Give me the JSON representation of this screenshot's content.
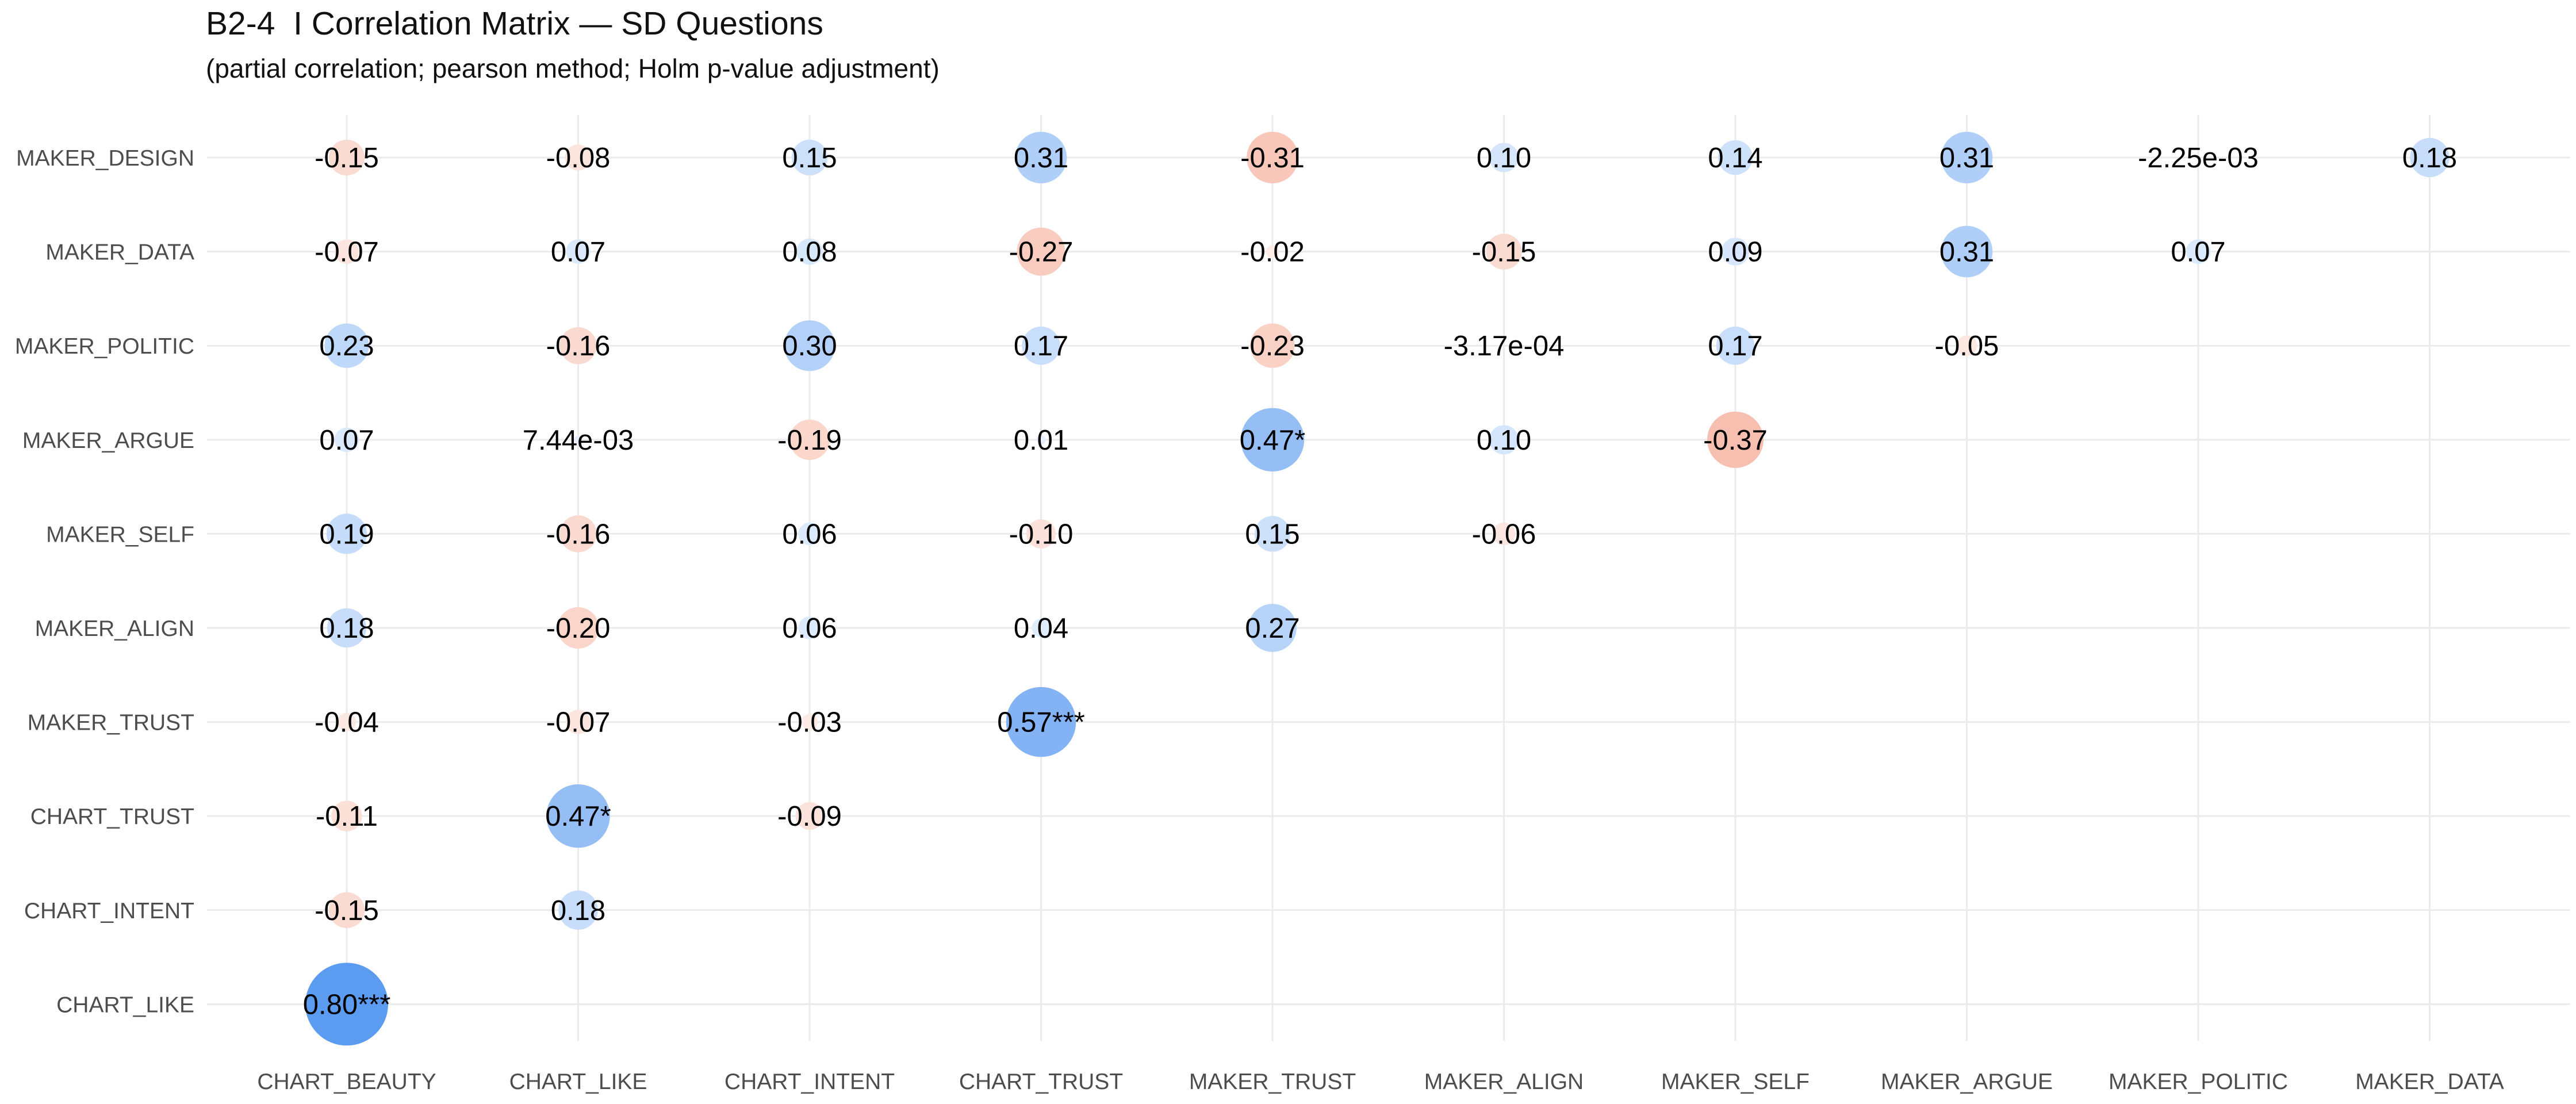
{
  "chart_data": {
    "type": "bubble-correlation-matrix",
    "title": "B2-4  I Correlation Matrix — SD Questions",
    "subtitle": "(partial correlation; pearson method; Holm p-value adjustment)",
    "x_categories": [
      "CHART_BEAUTY",
      "CHART_LIKE",
      "CHART_INTENT",
      "CHART_TRUST",
      "MAKER_TRUST",
      "MAKER_ALIGN",
      "MAKER_SELF",
      "MAKER_ARGUE",
      "MAKER_POLITIC",
      "MAKER_DATA"
    ],
    "y_categories": [
      "MAKER_DESIGN",
      "MAKER_DATA",
      "MAKER_POLITIC",
      "MAKER_ARGUE",
      "MAKER_SELF",
      "MAKER_ALIGN",
      "MAKER_TRUST",
      "CHART_TRUST",
      "CHART_INTENT",
      "CHART_LIKE"
    ],
    "color_positive": "#5b9bf0",
    "color_negative": "#f08a6c",
    "grid": true,
    "legend": "none",
    "cells": [
      {
        "x": "CHART_BEAUTY",
        "y": "MAKER_DESIGN",
        "r": -0.15,
        "label": "-0.15"
      },
      {
        "x": "CHART_LIKE",
        "y": "MAKER_DESIGN",
        "r": -0.08,
        "label": "-0.08"
      },
      {
        "x": "CHART_INTENT",
        "y": "MAKER_DESIGN",
        "r": 0.15,
        "label": "0.15"
      },
      {
        "x": "CHART_TRUST",
        "y": "MAKER_DESIGN",
        "r": 0.31,
        "label": "0.31"
      },
      {
        "x": "MAKER_TRUST",
        "y": "MAKER_DESIGN",
        "r": -0.31,
        "label": "-0.31"
      },
      {
        "x": "MAKER_ALIGN",
        "y": "MAKER_DESIGN",
        "r": 0.1,
        "label": "0.10"
      },
      {
        "x": "MAKER_SELF",
        "y": "MAKER_DESIGN",
        "r": 0.14,
        "label": "0.14"
      },
      {
        "x": "MAKER_ARGUE",
        "y": "MAKER_DESIGN",
        "r": 0.31,
        "label": "0.31"
      },
      {
        "x": "MAKER_POLITIC",
        "y": "MAKER_DESIGN",
        "r": -0.00225,
        "label": "-2.25e-03"
      },
      {
        "x": "MAKER_DATA",
        "y": "MAKER_DESIGN",
        "r": 0.18,
        "label": "0.18"
      },
      {
        "x": "CHART_BEAUTY",
        "y": "MAKER_DATA",
        "r": -0.07,
        "label": "-0.07"
      },
      {
        "x": "CHART_LIKE",
        "y": "MAKER_DATA",
        "r": 0.07,
        "label": "0.07"
      },
      {
        "x": "CHART_INTENT",
        "y": "MAKER_DATA",
        "r": 0.08,
        "label": "0.08"
      },
      {
        "x": "CHART_TRUST",
        "y": "MAKER_DATA",
        "r": -0.27,
        "label": "-0.27"
      },
      {
        "x": "MAKER_TRUST",
        "y": "MAKER_DATA",
        "r": -0.02,
        "label": "-0.02"
      },
      {
        "x": "MAKER_ALIGN",
        "y": "MAKER_DATA",
        "r": -0.15,
        "label": "-0.15"
      },
      {
        "x": "MAKER_SELF",
        "y": "MAKER_DATA",
        "r": 0.09,
        "label": "0.09"
      },
      {
        "x": "MAKER_ARGUE",
        "y": "MAKER_DATA",
        "r": 0.31,
        "label": "0.31"
      },
      {
        "x": "MAKER_POLITIC",
        "y": "MAKER_DATA",
        "r": 0.07,
        "label": "0.07"
      },
      {
        "x": "CHART_BEAUTY",
        "y": "MAKER_POLITIC",
        "r": 0.23,
        "label": "0.23"
      },
      {
        "x": "CHART_LIKE",
        "y": "MAKER_POLITIC",
        "r": -0.16,
        "label": "-0.16"
      },
      {
        "x": "CHART_INTENT",
        "y": "MAKER_POLITIC",
        "r": 0.3,
        "label": "0.30"
      },
      {
        "x": "CHART_TRUST",
        "y": "MAKER_POLITIC",
        "r": 0.17,
        "label": "0.17"
      },
      {
        "x": "MAKER_TRUST",
        "y": "MAKER_POLITIC",
        "r": -0.23,
        "label": "-0.23"
      },
      {
        "x": "MAKER_ALIGN",
        "y": "MAKER_POLITIC",
        "r": -0.000317,
        "label": "-3.17e-04"
      },
      {
        "x": "MAKER_SELF",
        "y": "MAKER_POLITIC",
        "r": 0.17,
        "label": "0.17"
      },
      {
        "x": "MAKER_ARGUE",
        "y": "MAKER_POLITIC",
        "r": -0.05,
        "label": "-0.05"
      },
      {
        "x": "CHART_BEAUTY",
        "y": "MAKER_ARGUE",
        "r": 0.07,
        "label": "0.07"
      },
      {
        "x": "CHART_LIKE",
        "y": "MAKER_ARGUE",
        "r": 0.00744,
        "label": "7.44e-03"
      },
      {
        "x": "CHART_INTENT",
        "y": "MAKER_ARGUE",
        "r": -0.19,
        "label": "-0.19"
      },
      {
        "x": "CHART_TRUST",
        "y": "MAKER_ARGUE",
        "r": 0.01,
        "label": "0.01"
      },
      {
        "x": "MAKER_TRUST",
        "y": "MAKER_ARGUE",
        "r": 0.47,
        "label": "0.47*"
      },
      {
        "x": "MAKER_ALIGN",
        "y": "MAKER_ARGUE",
        "r": 0.1,
        "label": "0.10"
      },
      {
        "x": "MAKER_SELF",
        "y": "MAKER_ARGUE",
        "r": -0.37,
        "label": "-0.37"
      },
      {
        "x": "CHART_BEAUTY",
        "y": "MAKER_SELF",
        "r": 0.19,
        "label": "0.19"
      },
      {
        "x": "CHART_LIKE",
        "y": "MAKER_SELF",
        "r": -0.16,
        "label": "-0.16"
      },
      {
        "x": "CHART_INTENT",
        "y": "MAKER_SELF",
        "r": 0.06,
        "label": "0.06"
      },
      {
        "x": "CHART_TRUST",
        "y": "MAKER_SELF",
        "r": -0.1,
        "label": "-0.10"
      },
      {
        "x": "MAKER_TRUST",
        "y": "MAKER_SELF",
        "r": 0.15,
        "label": "0.15"
      },
      {
        "x": "MAKER_ALIGN",
        "y": "MAKER_SELF",
        "r": -0.06,
        "label": "-0.06"
      },
      {
        "x": "CHART_BEAUTY",
        "y": "MAKER_ALIGN",
        "r": 0.18,
        "label": "0.18"
      },
      {
        "x": "CHART_LIKE",
        "y": "MAKER_ALIGN",
        "r": -0.2,
        "label": "-0.20"
      },
      {
        "x": "CHART_INTENT",
        "y": "MAKER_ALIGN",
        "r": 0.06,
        "label": "0.06"
      },
      {
        "x": "CHART_TRUST",
        "y": "MAKER_ALIGN",
        "r": 0.04,
        "label": "0.04"
      },
      {
        "x": "MAKER_TRUST",
        "y": "MAKER_ALIGN",
        "r": 0.27,
        "label": "0.27"
      },
      {
        "x": "CHART_BEAUTY",
        "y": "MAKER_TRUST",
        "r": -0.04,
        "label": "-0.04"
      },
      {
        "x": "CHART_LIKE",
        "y": "MAKER_TRUST",
        "r": -0.07,
        "label": "-0.07"
      },
      {
        "x": "CHART_INTENT",
        "y": "MAKER_TRUST",
        "r": -0.03,
        "label": "-0.03"
      },
      {
        "x": "CHART_TRUST",
        "y": "MAKER_TRUST",
        "r": 0.57,
        "label": "0.57***"
      },
      {
        "x": "CHART_BEAUTY",
        "y": "CHART_TRUST",
        "r": -0.11,
        "label": "-0.11"
      },
      {
        "x": "CHART_LIKE",
        "y": "CHART_TRUST",
        "r": 0.47,
        "label": "0.47*"
      },
      {
        "x": "CHART_INTENT",
        "y": "CHART_TRUST",
        "r": -0.09,
        "label": "-0.09"
      },
      {
        "x": "CHART_BEAUTY",
        "y": "CHART_INTENT",
        "r": -0.15,
        "label": "-0.15"
      },
      {
        "x": "CHART_LIKE",
        "y": "CHART_INTENT",
        "r": 0.18,
        "label": "0.18"
      },
      {
        "x": "CHART_BEAUTY",
        "y": "CHART_LIKE",
        "r": 0.8,
        "label": "0.80***"
      }
    ]
  }
}
